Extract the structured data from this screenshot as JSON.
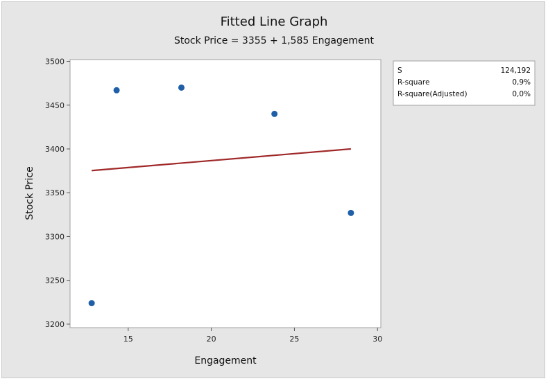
{
  "chart_data": {
    "type": "scatter",
    "title": "Fitted Line Graph",
    "subtitle": "Stock Price = 3355 + 1,585 Engagement",
    "xlabel": "Engagement",
    "ylabel": "Stock Price",
    "xlim": [
      11.5,
      30.2
    ],
    "ylim": [
      3196,
      3502
    ],
    "xticks": [
      15,
      20,
      25,
      30
    ],
    "yticks": [
      3200,
      3250,
      3300,
      3350,
      3400,
      3450,
      3500
    ],
    "points": [
      {
        "x": 12.8,
        "y": 3224
      },
      {
        "x": 14.3,
        "y": 3467
      },
      {
        "x": 18.2,
        "y": 3470
      },
      {
        "x": 23.8,
        "y": 3440
      },
      {
        "x": 28.4,
        "y": 3327
      }
    ],
    "fit_line": {
      "intercept": 3355,
      "slope": 1.585,
      "x_range": [
        12.8,
        28.4
      ]
    },
    "grid": false,
    "point_color": "#1f5fa8",
    "line_color": "#a02828",
    "stats_table": [
      {
        "label": "S",
        "value": "124,192"
      },
      {
        "label": "R-square",
        "value": "0,9%"
      },
      {
        "label": "R-square(Adjusted)",
        "value": "0,0%"
      }
    ]
  }
}
